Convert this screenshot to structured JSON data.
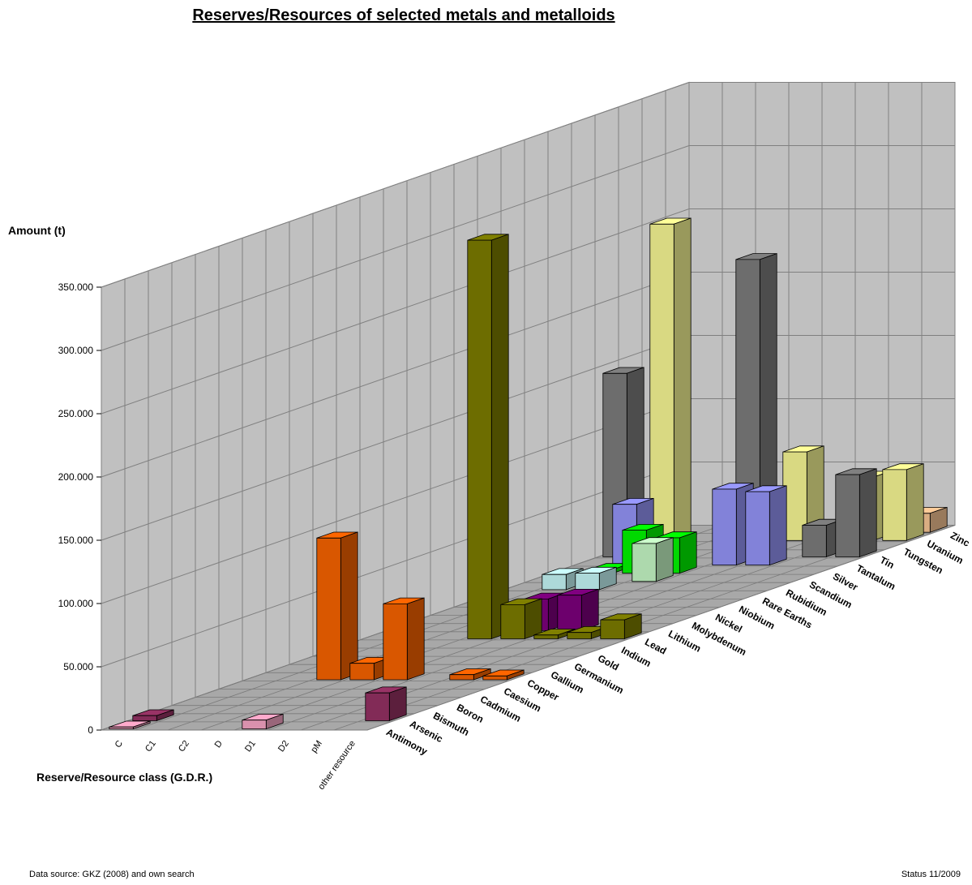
{
  "title": "Reserves/Resources of selected metals and metalloids",
  "footer": {
    "source": "Data source: GKZ (2008) and own search",
    "status": "Status 11/2009"
  },
  "chart_data": {
    "type": "bar",
    "variant": "3d-bar",
    "title": "Reserves/Resources of selected metals and metalloids",
    "ylabel": "Amount (t)",
    "xlabel": "Reserve/Resource class (G.D.R.)",
    "ylim": [
      0,
      350000
    ],
    "yticks": [
      0,
      50000,
      100000,
      150000,
      200000,
      250000,
      300000,
      350000
    ],
    "ytick_labels": [
      "0",
      "50.000",
      "100.000",
      "150.000",
      "200.000",
      "250.000",
      "300.000",
      "350.000"
    ],
    "grid": true,
    "classes": [
      "C",
      "C1",
      "C2",
      "D",
      "D1",
      "D2",
      "pM",
      "other resource"
    ],
    "metals": [
      "Antimony",
      "Arsenic",
      "Bismuth",
      "Boron",
      "Cadmium",
      "Caesium",
      "Copper",
      "Gallium",
      "Germanium",
      "Gold",
      "Indium",
      "Lead",
      "Lithium",
      "Molybdenum",
      "Nickel",
      "Niobium",
      "Rare Earths",
      "Rubidium",
      "Scandium",
      "Silver",
      "Tantalum",
      "Tin",
      "Tungsten",
      "Uranium",
      "Zinc"
    ],
    "colors": {
      "Antimony": "#ffaacc",
      "Arsenic": "#993366",
      "Bismuth": "#ffffcc",
      "Boron": "#ccffff",
      "Cadmium": "#660066",
      "Caesium": "#ff8080",
      "Copper": "#ff6600",
      "Gallium": "#0066cc",
      "Germanium": "#ccccff",
      "Gold": "#000080",
      "Indium": "#ff00ff",
      "Lead": "#808000",
      "Lithium": "#800080",
      "Molybdenum": "#800000",
      "Nickel": "#008080",
      "Niobium": "#0000ff",
      "Rare Earths": "#00ccff",
      "Rubidium": "#ccffff",
      "Scandium": "#ccffcc",
      "Silver": "#00ff00",
      "Tantalum": "#9999ff",
      "Tin": "#808080",
      "Tungsten": "#cc0000",
      "Uranium": "#ffff99",
      "Zinc": "#ffcc99"
    },
    "values": [
      {
        "metal": "Antimony",
        "class": "C",
        "value": 1500
      },
      {
        "metal": "Arsenic",
        "class": "C",
        "value": 4000
      },
      {
        "metal": "Antimony",
        "class": "D1",
        "value": 7000
      },
      {
        "metal": "Zinc",
        "class": "other resource",
        "value": 15000
      },
      {
        "metal": "Copper",
        "class": "D",
        "value": 13000
      },
      {
        "metal": "Copper",
        "class": "pM",
        "value": 4000
      },
      {
        "metal": "Copper",
        "class": "other resource",
        "value": 3000
      },
      {
        "metal": "Copper",
        "class": "D1",
        "value": 60000
      },
      {
        "metal": "Copper",
        "class": "C2",
        "value": 112000
      },
      {
        "metal": "Silver",
        "class": "C1",
        "value": 3000
      },
      {
        "metal": "Silver",
        "class": "C2",
        "value": 34000
      },
      {
        "metal": "Arsenic",
        "class": "other resource",
        "value": 22000
      },
      {
        "metal": "Lead",
        "class": "D",
        "value": 315000
      },
      {
        "metal": "Lead",
        "class": "D1",
        "value": 27000
      },
      {
        "metal": "Lead",
        "class": "D2",
        "value": 3000
      },
      {
        "metal": "Lead",
        "class": "pM",
        "value": 5000
      },
      {
        "metal": "Lead",
        "class": "other resource",
        "value": 15000
      },
      {
        "metal": "Lithium",
        "class": "D1",
        "value": 25000
      },
      {
        "metal": "Lithium",
        "class": "D2",
        "value": 28000
      },
      {
        "metal": "Tin",
        "class": "C",
        "value": 145000
      },
      {
        "metal": "Tin",
        "class": "D1",
        "value": 235000
      },
      {
        "metal": "Tin",
        "class": "pM",
        "value": 25000
      },
      {
        "metal": "Tin",
        "class": "other resource",
        "value": 65000
      },
      {
        "metal": "Uranium",
        "class": "C",
        "value": 250000
      },
      {
        "metal": "Uranium",
        "class": "D1",
        "value": 70000
      },
      {
        "metal": "Uranium",
        "class": "pM",
        "value": 50000
      },
      {
        "metal": "Uranium",
        "class": "other resource",
        "value": 56000
      },
      {
        "metal": "Tantalum",
        "class": "C1",
        "value": 48000
      },
      {
        "metal": "Tantalum",
        "class": "D1",
        "value": 60000
      },
      {
        "metal": "Tantalum",
        "class": "D2",
        "value": 58000
      },
      {
        "metal": "Rubidium",
        "class": "C1",
        "value": 12000
      },
      {
        "metal": "Rubidium",
        "class": "C2",
        "value": 13000
      },
      {
        "metal": "Scandium",
        "class": "D",
        "value": 30000
      },
      {
        "metal": "Silver",
        "class": "D",
        "value": 28000
      },
      {
        "metal": "Tungsten",
        "class": "pM",
        "value": 8000
      }
    ]
  }
}
